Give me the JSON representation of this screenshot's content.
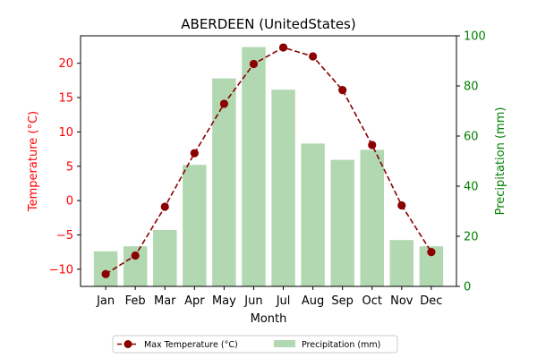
{
  "chart_data": {
    "type": "bar",
    "title": "ABERDEEN (UnitedStates)",
    "xlabel": "Month",
    "ylabel_left": "Temperature (°C)",
    "ylabel_right": "Precipitation (mm)",
    "categories": [
      "Jan",
      "Feb",
      "Mar",
      "Apr",
      "May",
      "Jun",
      "Jul",
      "Aug",
      "Sep",
      "Oct",
      "Nov",
      "Dec"
    ],
    "ylim_left": [
      -12.5,
      24
    ],
    "ylim_right": [
      0,
      100
    ],
    "yticks_left": [
      -10,
      -5,
      0,
      5,
      10,
      15,
      20
    ],
    "yticks_right": [
      0,
      20,
      40,
      60,
      80,
      100
    ],
    "series": [
      {
        "name": "Max Temperature (°C)",
        "kind": "line",
        "axis": "left",
        "color": "#8b0000",
        "values": [
          -10.7,
          -8.0,
          -0.9,
          6.9,
          14.1,
          19.9,
          22.3,
          21.0,
          16.1,
          8.1,
          -0.7,
          -7.5
        ]
      },
      {
        "name": "Precipitation (mm)",
        "kind": "bar",
        "axis": "right",
        "color": "#b1d8b1",
        "values": [
          14,
          16,
          22.5,
          48.5,
          83,
          95.5,
          78.5,
          57,
          50.5,
          54.5,
          18.5,
          16
        ]
      }
    ],
    "left_axis_color": "#ff0000",
    "right_axis_color": "#008000",
    "legend_position": "bottom-center",
    "grid": false
  }
}
